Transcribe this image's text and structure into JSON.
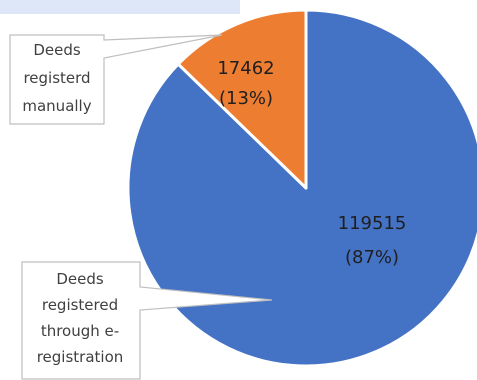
{
  "chart_data": {
    "type": "pie",
    "title": "",
    "slices": [
      {
        "label_lines": [
          "Deeds",
          "registered",
          "through e-",
          "registration"
        ],
        "value": 119515,
        "value_text": "119515",
        "percent_text": "(87%)",
        "color": "#4472c4"
      },
      {
        "label_lines": [
          "Deeds",
          "registerd",
          "manually"
        ],
        "value": 17462,
        "value_text": "17462",
        "percent_text": "(13%)",
        "color": "#ed7d31"
      }
    ],
    "start_angle_deg": 0,
    "direction": "clockwise_from_top",
    "legend": "none",
    "callouts": true
  },
  "colors": {
    "slice_border": "#ffffff",
    "callout_border": "#bfbfbf",
    "header_strip": "#dde7f7"
  }
}
